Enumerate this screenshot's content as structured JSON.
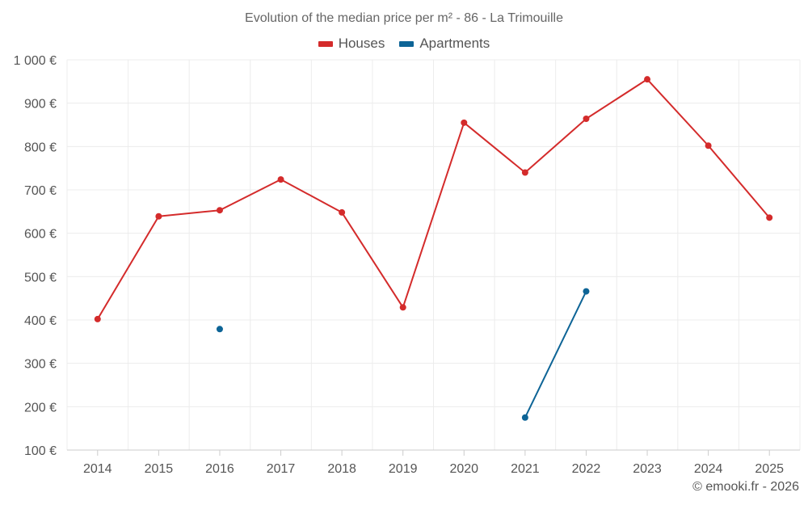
{
  "chart_data": {
    "type": "line",
    "title": "Evolution of the median price per m² - 86 - La Trimouille",
    "categories": [
      "2014",
      "2015",
      "2016",
      "2017",
      "2018",
      "2019",
      "2020",
      "2021",
      "2022",
      "2023",
      "2024",
      "2025"
    ],
    "series": [
      {
        "name": "Houses",
        "color": "#d42b2b",
        "values": [
          402,
          639,
          653,
          724,
          648,
          429,
          855,
          740,
          864,
          955,
          802,
          636
        ]
      },
      {
        "name": "Apartments",
        "color": "#0d6496",
        "values": [
          null,
          null,
          379,
          null,
          null,
          null,
          null,
          175,
          466,
          null,
          null,
          null
        ]
      }
    ],
    "ylim": [
      100,
      1000
    ],
    "yticks": [
      100,
      200,
      300,
      400,
      500,
      600,
      700,
      800,
      900,
      1000
    ],
    "ytick_labels": [
      "100 €",
      "200 €",
      "300 €",
      "400 €",
      "500 €",
      "600 €",
      "700 €",
      "800 €",
      "900 €",
      "1 000 €"
    ],
    "xlabel": "",
    "ylabel": "",
    "grid": true,
    "legend_position": "top-center"
  },
  "credit": "© emooki.fr - 2026"
}
